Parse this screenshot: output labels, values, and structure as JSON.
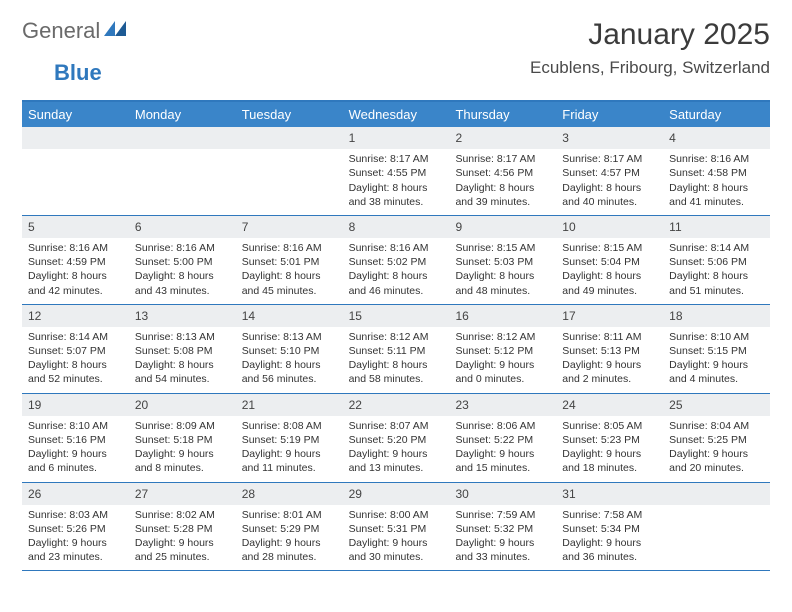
{
  "logo": {
    "text1": "General",
    "text2": "Blue"
  },
  "title": "January 2025",
  "location": "Ecublens, Fribourg, Switzerland",
  "colors": {
    "header_bg": "#3a85c9",
    "header_text": "#ffffff",
    "border": "#2f78bd",
    "daynum_bg": "#eceef0",
    "body_text": "#333333",
    "logo_gray": "#6a6a6a",
    "logo_blue": "#2f78bd"
  },
  "day_headers": [
    "Sunday",
    "Monday",
    "Tuesday",
    "Wednesday",
    "Thursday",
    "Friday",
    "Saturday"
  ],
  "weeks": [
    [
      null,
      null,
      null,
      {
        "n": "1",
        "sr": "8:17 AM",
        "ss": "4:55 PM",
        "dh": "8",
        "dm": "38"
      },
      {
        "n": "2",
        "sr": "8:17 AM",
        "ss": "4:56 PM",
        "dh": "8",
        "dm": "39"
      },
      {
        "n": "3",
        "sr": "8:17 AM",
        "ss": "4:57 PM",
        "dh": "8",
        "dm": "40"
      },
      {
        "n": "4",
        "sr": "8:16 AM",
        "ss": "4:58 PM",
        "dh": "8",
        "dm": "41"
      }
    ],
    [
      {
        "n": "5",
        "sr": "8:16 AM",
        "ss": "4:59 PM",
        "dh": "8",
        "dm": "42"
      },
      {
        "n": "6",
        "sr": "8:16 AM",
        "ss": "5:00 PM",
        "dh": "8",
        "dm": "43"
      },
      {
        "n": "7",
        "sr": "8:16 AM",
        "ss": "5:01 PM",
        "dh": "8",
        "dm": "45"
      },
      {
        "n": "8",
        "sr": "8:16 AM",
        "ss": "5:02 PM",
        "dh": "8",
        "dm": "46"
      },
      {
        "n": "9",
        "sr": "8:15 AM",
        "ss": "5:03 PM",
        "dh": "8",
        "dm": "48"
      },
      {
        "n": "10",
        "sr": "8:15 AM",
        "ss": "5:04 PM",
        "dh": "8",
        "dm": "49"
      },
      {
        "n": "11",
        "sr": "8:14 AM",
        "ss": "5:06 PM",
        "dh": "8",
        "dm": "51"
      }
    ],
    [
      {
        "n": "12",
        "sr": "8:14 AM",
        "ss": "5:07 PM",
        "dh": "8",
        "dm": "52"
      },
      {
        "n": "13",
        "sr": "8:13 AM",
        "ss": "5:08 PM",
        "dh": "8",
        "dm": "54"
      },
      {
        "n": "14",
        "sr": "8:13 AM",
        "ss": "5:10 PM",
        "dh": "8",
        "dm": "56"
      },
      {
        "n": "15",
        "sr": "8:12 AM",
        "ss": "5:11 PM",
        "dh": "8",
        "dm": "58"
      },
      {
        "n": "16",
        "sr": "8:12 AM",
        "ss": "5:12 PM",
        "dh": "9",
        "dm": "0"
      },
      {
        "n": "17",
        "sr": "8:11 AM",
        "ss": "5:13 PM",
        "dh": "9",
        "dm": "2"
      },
      {
        "n": "18",
        "sr": "8:10 AM",
        "ss": "5:15 PM",
        "dh": "9",
        "dm": "4"
      }
    ],
    [
      {
        "n": "19",
        "sr": "8:10 AM",
        "ss": "5:16 PM",
        "dh": "9",
        "dm": "6"
      },
      {
        "n": "20",
        "sr": "8:09 AM",
        "ss": "5:18 PM",
        "dh": "9",
        "dm": "8"
      },
      {
        "n": "21",
        "sr": "8:08 AM",
        "ss": "5:19 PM",
        "dh": "9",
        "dm": "11"
      },
      {
        "n": "22",
        "sr": "8:07 AM",
        "ss": "5:20 PM",
        "dh": "9",
        "dm": "13"
      },
      {
        "n": "23",
        "sr": "8:06 AM",
        "ss": "5:22 PM",
        "dh": "9",
        "dm": "15"
      },
      {
        "n": "24",
        "sr": "8:05 AM",
        "ss": "5:23 PM",
        "dh": "9",
        "dm": "18"
      },
      {
        "n": "25",
        "sr": "8:04 AM",
        "ss": "5:25 PM",
        "dh": "9",
        "dm": "20"
      }
    ],
    [
      {
        "n": "26",
        "sr": "8:03 AM",
        "ss": "5:26 PM",
        "dh": "9",
        "dm": "23"
      },
      {
        "n": "27",
        "sr": "8:02 AM",
        "ss": "5:28 PM",
        "dh": "9",
        "dm": "25"
      },
      {
        "n": "28",
        "sr": "8:01 AM",
        "ss": "5:29 PM",
        "dh": "9",
        "dm": "28"
      },
      {
        "n": "29",
        "sr": "8:00 AM",
        "ss": "5:31 PM",
        "dh": "9",
        "dm": "30"
      },
      {
        "n": "30",
        "sr": "7:59 AM",
        "ss": "5:32 PM",
        "dh": "9",
        "dm": "33"
      },
      {
        "n": "31",
        "sr": "7:58 AM",
        "ss": "5:34 PM",
        "dh": "9",
        "dm": "36"
      },
      null
    ]
  ],
  "labels": {
    "sunrise": "Sunrise:",
    "sunset": "Sunset:",
    "daylight": "Daylight:",
    "hours": "hours",
    "and": "and",
    "minutes": "minutes."
  }
}
